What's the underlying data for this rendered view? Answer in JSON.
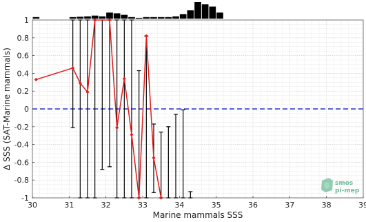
{
  "chart_data": {
    "type": "line",
    "xlabel": "Marine mammals SSS",
    "ylabel": "Δ SSS (SAT-Marine mammals)",
    "xlim": [
      30,
      39
    ],
    "ylim": [
      -1,
      1
    ],
    "x_ticks": [
      "30",
      "31",
      "32",
      "33",
      "34",
      "35",
      "36",
      "37",
      "38",
      "39"
    ],
    "y_ticks": [
      "1",
      "0.8",
      "0.6",
      "0.4",
      "0.2",
      "0",
      "-0.2",
      "-0.4",
      "-0.6",
      "-0.8",
      "-1"
    ],
    "grid": true,
    "reference_line": {
      "y": 0,
      "style": "dashed",
      "color": "#1f2fd0"
    },
    "series": [
      {
        "color": "#e01b1b",
        "marker": "diamond",
        "x": [
          30.1,
          31.1,
          31.3,
          31.5,
          31.7,
          32.1,
          32.3,
          32.5,
          32.7,
          32.9,
          33.1,
          33.3,
          33.5
        ],
        "y": [
          0.33,
          0.46,
          0.29,
          0.19,
          1.0,
          1.0,
          -0.21,
          0.34,
          -0.29,
          -1.0,
          0.82,
          -0.55,
          -1.0
        ]
      }
    ],
    "error_bars": {
      "color": "#000000",
      "items": [
        {
          "x": 31.1,
          "low": -0.21,
          "high": 1.0
        },
        {
          "x": 31.3,
          "low": -1.0,
          "high": 1.0
        },
        {
          "x": 31.5,
          "low": -1.0,
          "high": 1.0
        },
        {
          "x": 31.7,
          "low": -1.0,
          "high": 1.0
        },
        {
          "x": 31.9,
          "low": -0.68,
          "high": 1.0
        },
        {
          "x": 32.1,
          "low": -0.65,
          "high": 1.0
        },
        {
          "x": 32.3,
          "low": -1.0,
          "high": 1.0
        },
        {
          "x": 32.5,
          "low": -1.0,
          "high": 1.0
        },
        {
          "x": 32.7,
          "low": -1.0,
          "high": 1.0
        },
        {
          "x": 32.9,
          "low": -1.0,
          "high": 0.43
        },
        {
          "x": 33.1,
          "low": -1.0,
          "high": 0.82
        },
        {
          "x": 33.3,
          "low": -0.94,
          "high": -0.17
        },
        {
          "x": 33.5,
          "low": -1.0,
          "high": -0.26
        },
        {
          "x": 33.7,
          "low": -1.0,
          "high": -0.2
        },
        {
          "x": 33.9,
          "low": -1.0,
          "high": -0.06
        },
        {
          "x": 34.1,
          "low": -1.0,
          "high": -0.01
        },
        {
          "x": 34.3,
          "low": -1.0,
          "high": -0.93
        }
      ]
    },
    "histogram": {
      "bin_starts": [
        30.0,
        30.2,
        30.4,
        30.6,
        30.8,
        31.0,
        31.2,
        31.4,
        31.6,
        31.8,
        32.0,
        32.2,
        32.4,
        32.6,
        32.8,
        33.0,
        33.2,
        33.4,
        33.6,
        33.8,
        34.0,
        34.2,
        34.4,
        34.6,
        34.8,
        35.0
      ],
      "bin_width": 0.2,
      "counts": [
        2,
        0,
        0,
        0,
        0,
        2,
        2.5,
        3,
        4,
        3,
        8,
        7,
        5,
        2,
        1,
        2,
        2,
        2,
        2,
        3,
        6,
        11,
        22,
        19,
        16,
        8
      ],
      "color": "#000000"
    },
    "watermark": [
      "smos",
      "pi-mep"
    ]
  }
}
